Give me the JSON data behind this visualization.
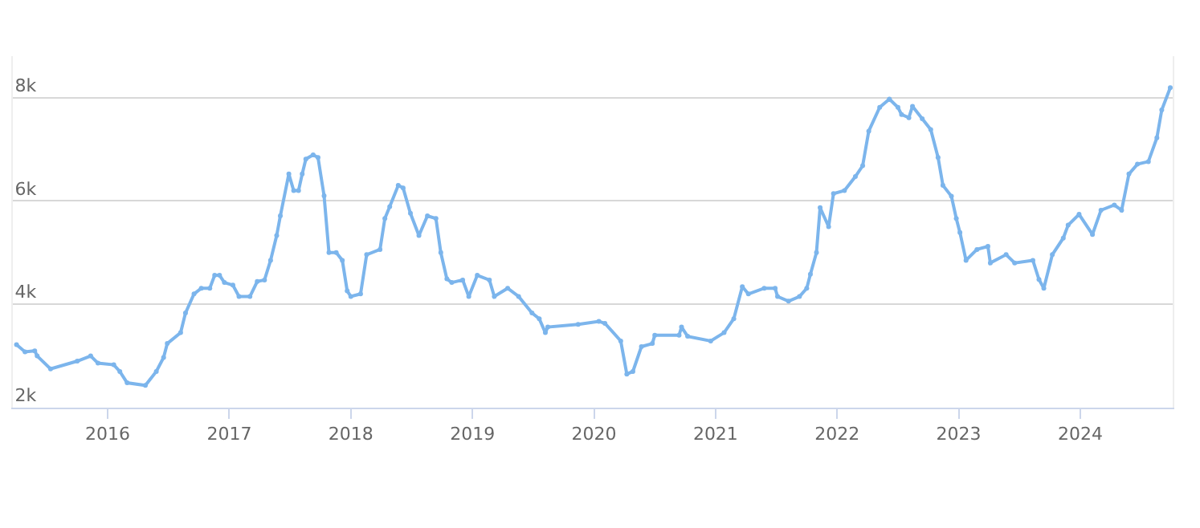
{
  "chart_data": {
    "type": "line",
    "x": [
      2015.25,
      2015.32,
      2015.4,
      2015.42,
      2015.53,
      2015.75,
      2015.86,
      2015.92,
      2016.05,
      2016.1,
      2016.16,
      2016.31,
      2016.4,
      2016.46,
      2016.49,
      2016.6,
      2016.64,
      2016.71,
      2016.77,
      2016.84,
      2016.88,
      2016.92,
      2016.96,
      2017.03,
      2017.08,
      2017.17,
      2017.23,
      2017.29,
      2017.34,
      2017.39,
      2017.42,
      2017.49,
      2017.53,
      2017.57,
      2017.6,
      2017.63,
      2017.69,
      2017.73,
      2017.78,
      2017.82,
      2017.88,
      2017.93,
      2017.97,
      2018.0,
      2018.08,
      2018.13,
      2018.24,
      2018.28,
      2018.32,
      2018.39,
      2018.43,
      2018.49,
      2018.56,
      2018.63,
      2018.7,
      2018.74,
      2018.79,
      2018.83,
      2018.92,
      2018.97,
      2019.04,
      2019.14,
      2019.18,
      2019.29,
      2019.38,
      2019.49,
      2019.55,
      2019.6,
      2019.62,
      2019.87,
      2020.04,
      2020.09,
      2020.22,
      2020.27,
      2020.32,
      2020.39,
      2020.48,
      2020.5,
      2020.7,
      2020.72,
      2020.77,
      2020.96,
      2021.07,
      2021.15,
      2021.22,
      2021.27,
      2021.4,
      2021.49,
      2021.51,
      2021.6,
      2021.69,
      2021.75,
      2021.78,
      2021.83,
      2021.86,
      2021.93,
      2021.97,
      2022.06,
      2022.15,
      2022.21,
      2022.26,
      2022.35,
      2022.43,
      2022.5,
      2022.53,
      2022.59,
      2022.62,
      2022.7,
      2022.77,
      2022.83,
      2022.87,
      2022.94,
      2022.98,
      2023.01,
      2023.06,
      2023.15,
      2023.24,
      2023.26,
      2023.39,
      2023.46,
      2023.61,
      2023.66,
      2023.7,
      2023.77,
      2023.86,
      2023.9,
      2023.99,
      2024.1,
      2024.17,
      2024.28,
      2024.34,
      2024.4,
      2024.47,
      2024.56,
      2024.63,
      2024.67,
      2024.74
    ],
    "series": [
      {
        "color": "#7cb5ec",
        "values": [
          3220,
          3080,
          3100,
          3000,
          2750,
          2900,
          3000,
          2860,
          2830,
          2700,
          2480,
          2430,
          2700,
          2970,
          3240,
          3450,
          3830,
          4200,
          4310,
          4310,
          4560,
          4560,
          4420,
          4370,
          4150,
          4150,
          4440,
          4470,
          4850,
          5330,
          5710,
          6520,
          6200,
          6200,
          6520,
          6810,
          6890,
          6840,
          6100,
          5000,
          5000,
          4850,
          4260,
          4150,
          4200,
          4960,
          5060,
          5660,
          5890,
          6300,
          6250,
          5760,
          5330,
          5710,
          5660,
          5000,
          4490,
          4420,
          4470,
          4150,
          4560,
          4470,
          4150,
          4310,
          4150,
          3830,
          3720,
          3450,
          3560,
          3610,
          3670,
          3630,
          3290,
          2650,
          2700,
          3180,
          3240,
          3400,
          3400,
          3560,
          3380,
          3290,
          3450,
          3720,
          4340,
          4200,
          4310,
          4310,
          4150,
          4060,
          4150,
          4310,
          4580,
          5000,
          5870,
          5500,
          6140,
          6200,
          6470,
          6680,
          7350,
          7810,
          7970,
          7810,
          7670,
          7610,
          7830,
          7590,
          7380,
          6840,
          6300,
          6090,
          5660,
          5390,
          4850,
          5060,
          5120,
          4800,
          4960,
          4800,
          4850,
          4480,
          4310,
          4960,
          5280,
          5530,
          5740,
          5350,
          5820,
          5920,
          5820,
          6520,
          6710,
          6760,
          7220,
          7760,
          8190
        ]
      }
    ],
    "xlim": [
      2015.22,
      2024.76
    ],
    "xticks": [
      2016,
      2017,
      2018,
      2019,
      2020,
      2021,
      2022,
      2023,
      2024
    ],
    "ylim": [
      2000,
      8800
    ],
    "yticks": [
      {
        "value": 2000,
        "label": "2k"
      },
      {
        "value": 4000,
        "label": "4k"
      },
      {
        "value": 6000,
        "label": "6k"
      },
      {
        "value": 8000,
        "label": "8k"
      }
    ],
    "grid": "y",
    "marker": "circle",
    "line_style": "solid"
  }
}
